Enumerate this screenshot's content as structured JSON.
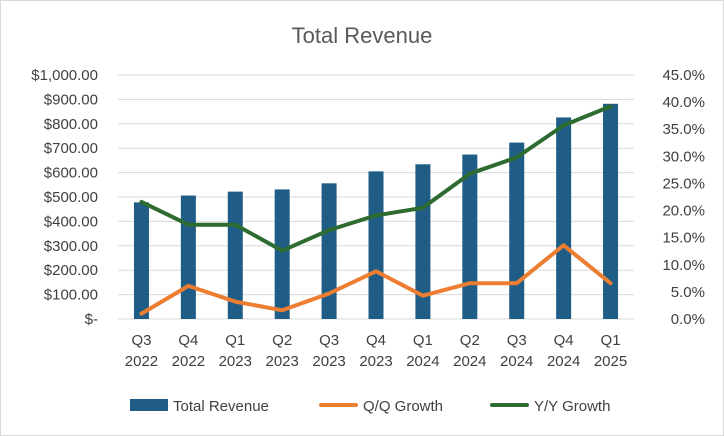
{
  "chart_data": {
    "type": "bar",
    "title": "Total Revenue",
    "categories": [
      [
        "Q3",
        "2022"
      ],
      [
        "Q4",
        "2022"
      ],
      [
        "Q1",
        "2023"
      ],
      [
        "Q2",
        "2023"
      ],
      [
        "Q3",
        "2023"
      ],
      [
        "Q4",
        "2023"
      ],
      [
        "Q1",
        "2024"
      ],
      [
        "Q2",
        "2024"
      ],
      [
        "Q3",
        "2024"
      ],
      [
        "Q4",
        "2024"
      ],
      [
        "Q1",
        "2025"
      ]
    ],
    "series": [
      {
        "name": "Total Revenue",
        "type": "bar",
        "axis": "left",
        "color": "#1f5c86",
        "values": [
          478,
          506,
          522,
          531,
          556,
          605,
          634,
          674,
          723,
          826,
          882
        ]
      },
      {
        "name": "Q/Q Growth",
        "type": "line",
        "axis": "right",
        "color": "#ed7d31",
        "values": [
          0.01,
          0.061,
          0.032,
          0.016,
          0.047,
          0.088,
          0.043,
          0.066,
          0.066,
          0.136,
          0.066
        ]
      },
      {
        "name": "Y/Y Growth",
        "type": "line",
        "axis": "right",
        "color": "#2e6b30",
        "values": [
          0.216,
          0.174,
          0.174,
          0.126,
          0.164,
          0.191,
          0.205,
          0.268,
          0.298,
          0.357,
          0.392
        ]
      }
    ],
    "y_left": {
      "min": 0,
      "max": 1000,
      "step": 100,
      "tick_labels": [
        "$-",
        "$100.00",
        "$200.00",
        "$300.00",
        "$400.00",
        "$500.00",
        "$600.00",
        "$700.00",
        "$800.00",
        "$900.00",
        "$1,000.00"
      ]
    },
    "y_right": {
      "min": 0,
      "max": 0.45,
      "step": 0.05,
      "tick_labels": [
        "0.0%",
        "5.0%",
        "10.0%",
        "15.0%",
        "20.0%",
        "25.0%",
        "30.0%",
        "35.0%",
        "40.0%",
        "45.0%"
      ]
    },
    "grid": true,
    "legend_position": "bottom"
  }
}
